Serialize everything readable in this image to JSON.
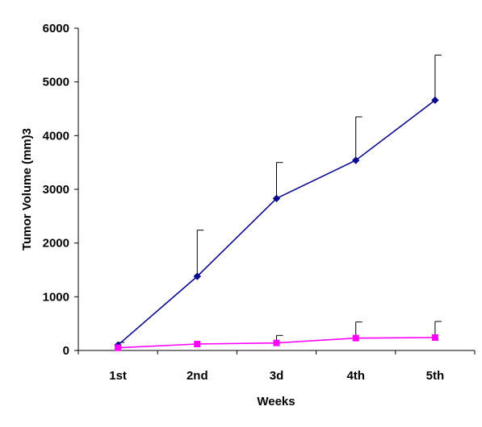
{
  "chart_data": {
    "type": "line",
    "categories": [
      "1st",
      "2nd",
      "3d",
      "4th",
      "5th"
    ],
    "xlabel": "Weeks",
    "ylabel": "Tumor Volume (mm)3",
    "ylim": [
      0,
      6000
    ],
    "yticks": [
      "0",
      "1000",
      "2000",
      "3000",
      "4000",
      "5000",
      "6000"
    ],
    "grid": false,
    "legend": "none",
    "series": [
      {
        "color": "#0a0a8c",
        "marker": "diamond",
        "values": [
          100,
          1380,
          2830,
          3540,
          4660
        ],
        "error_upper": [
          150,
          2240,
          3500,
          4350,
          5500
        ]
      },
      {
        "color": "#ff00ff",
        "marker": "square",
        "values": [
          50,
          120,
          140,
          230,
          240
        ],
        "error_upper": [
          60,
          120,
          280,
          530,
          540
        ]
      }
    ]
  }
}
